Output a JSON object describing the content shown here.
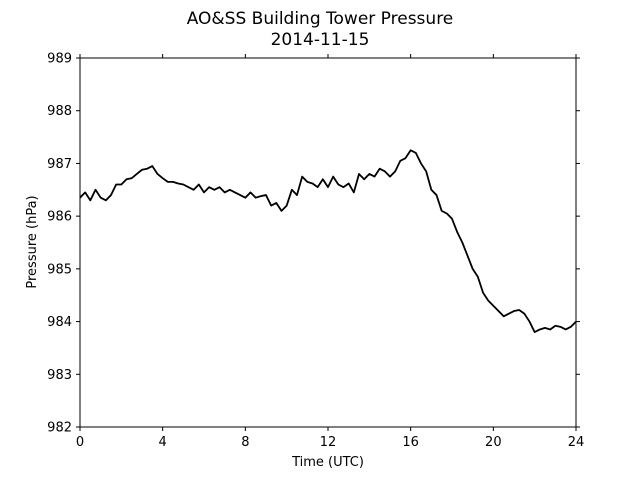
{
  "chart_data": {
    "type": "line",
    "title": "AO&SS Building Tower Pressure",
    "subtitle": "2014-11-15",
    "xlabel": "Time (UTC)",
    "ylabel": "Pressure (hPa)",
    "xlim": [
      0,
      24
    ],
    "ylim": [
      982,
      989
    ],
    "xticks": [
      0,
      4,
      8,
      12,
      16,
      20,
      24
    ],
    "yticks": [
      982,
      983,
      984,
      985,
      986,
      987,
      988,
      989
    ],
    "grid": false,
    "line_color": "#000000",
    "series": [
      {
        "x": [
          0,
          0.25,
          0.5,
          0.75,
          1,
          1.25,
          1.5,
          1.75,
          2,
          2.25,
          2.5,
          2.75,
          3,
          3.25,
          3.5,
          3.75,
          4,
          4.25,
          4.5,
          4.75,
          5,
          5.25,
          5.5,
          5.75,
          6,
          6.25,
          6.5,
          6.75,
          7,
          7.25,
          7.5,
          7.75,
          8,
          8.25,
          8.5,
          8.75,
          9,
          9.25,
          9.5,
          9.75,
          10,
          10.25,
          10.5,
          10.75,
          11,
          11.25,
          11.5,
          11.75,
          12,
          12.25,
          12.5,
          12.75,
          13,
          13.25,
          13.5,
          13.75,
          14,
          14.25,
          14.5,
          14.75,
          15,
          15.25,
          15.5,
          15.75,
          16,
          16.25,
          16.5,
          16.75,
          17,
          17.25,
          17.5,
          17.75,
          18,
          18.25,
          18.5,
          18.75,
          19,
          19.25,
          19.5,
          19.75,
          20,
          20.25,
          20.5,
          20.75,
          21,
          21.25,
          21.5,
          21.75,
          22,
          22.25,
          22.5,
          22.75,
          23,
          23.25,
          23.5,
          23.75,
          24
        ],
        "y": [
          986.35,
          986.45,
          986.3,
          986.5,
          986.35,
          986.3,
          986.4,
          986.6,
          986.6,
          986.7,
          986.72,
          986.8,
          986.88,
          986.9,
          986.95,
          986.8,
          986.72,
          986.65,
          986.65,
          986.62,
          986.6,
          986.55,
          986.5,
          986.6,
          986.45,
          986.55,
          986.5,
          986.55,
          986.45,
          986.5,
          986.45,
          986.4,
          986.35,
          986.45,
          986.35,
          986.38,
          986.4,
          986.2,
          986.25,
          986.1,
          986.2,
          986.5,
          986.4,
          986.75,
          986.65,
          986.62,
          986.55,
          986.7,
          986.55,
          986.75,
          986.6,
          986.55,
          986.62,
          986.45,
          986.8,
          986.7,
          986.8,
          986.75,
          986.9,
          986.85,
          986.75,
          986.85,
          987.05,
          987.1,
          987.25,
          987.2,
          987.0,
          986.85,
          986.5,
          986.4,
          986.1,
          986.05,
          985.95,
          985.7,
          985.5,
          985.25,
          985.0,
          984.85,
          984.55,
          984.4,
          984.3,
          984.2,
          984.1,
          984.15,
          984.2,
          984.22,
          984.15,
          984.0,
          983.8,
          983.85,
          983.88,
          983.85,
          983.92,
          983.9,
          983.85,
          983.9,
          984.0
        ]
      }
    ]
  }
}
